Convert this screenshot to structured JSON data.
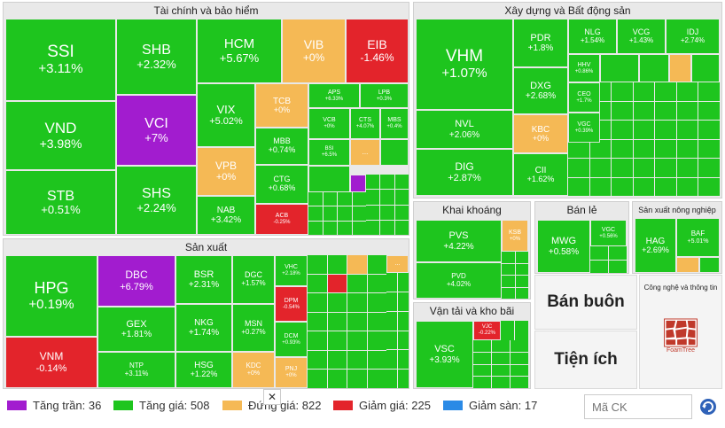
{
  "sectors": {
    "finance": "Tài chính và bảo hiểm",
    "construction": "Xây dựng và Bất động sản",
    "manufacturing": "Sản xuất",
    "mining": "Khai khoáng",
    "retail": "Bán lẻ",
    "agri": "Sản xuất nông nghiệp",
    "transport": "Vận tải và kho bãi",
    "tech": "Công nghệ và thông tin",
    "wholesale": "Bán buôn",
    "utilities": "Tiện ích"
  },
  "tiles": {
    "ssi": {
      "sym": "SSI",
      "chg": "+3.11%"
    },
    "vnd": {
      "sym": "VND",
      "chg": "+3.98%"
    },
    "stb": {
      "sym": "STB",
      "chg": "+0.51%"
    },
    "shb": {
      "sym": "SHB",
      "chg": "+2.32%"
    },
    "vci": {
      "sym": "VCI",
      "chg": "+7%"
    },
    "shs": {
      "sym": "SHS",
      "chg": "+2.24%"
    },
    "hcm": {
      "sym": "HCM",
      "chg": "+5.67%"
    },
    "vib": {
      "sym": "VIB",
      "chg": "+0%"
    },
    "eib": {
      "sym": "EIB",
      "chg": "-1.46%"
    },
    "vix": {
      "sym": "VIX",
      "chg": "+5.02%"
    },
    "tcb": {
      "sym": "TCB",
      "chg": "+0%"
    },
    "aps": {
      "sym": "APS",
      "chg": "+6.33%"
    },
    "lpb": {
      "sym": "LPB",
      "chg": "+0.3%"
    },
    "vcb": {
      "sym": "VCB",
      "chg": "+0%"
    },
    "cts": {
      "sym": "CTS",
      "chg": "+4.07%"
    },
    "mbs": {
      "sym": "MBS",
      "chg": "+0.4%"
    },
    "vpb": {
      "sym": "VPB",
      "chg": "+0%"
    },
    "mbb": {
      "sym": "MBB",
      "chg": "+0.74%"
    },
    "bsi": {
      "sym": "BSI",
      "chg": "+6.5%"
    },
    "ctg": {
      "sym": "CTG",
      "chg": "+0.68%"
    },
    "nab": {
      "sym": "NAB",
      "chg": "+3.42%"
    },
    "acb": {
      "sym": "ACB",
      "chg": "-0.25%"
    },
    "vhm": {
      "sym": "VHM",
      "chg": "+1.07%"
    },
    "pdr": {
      "sym": "PDR",
      "chg": "+1.8%"
    },
    "nlg": {
      "sym": "NLG",
      "chg": "+1.54%"
    },
    "vcg": {
      "sym": "VCG",
      "chg": "+1.43%"
    },
    "idj": {
      "sym": "IDJ",
      "chg": "+2.74%"
    },
    "dxg": {
      "sym": "DXG",
      "chg": "+2.68%"
    },
    "hhv": {
      "sym": "HHV",
      "chg": "+0.86%"
    },
    "ceo": {
      "sym": "CEO",
      "chg": "+1.7%"
    },
    "nvl": {
      "sym": "NVL",
      "chg": "+2.06%"
    },
    "kbc": {
      "sym": "KBC",
      "chg": "+0%"
    },
    "vgc": {
      "sym": "VGC",
      "chg": "+0.39%"
    },
    "dig": {
      "sym": "DIG",
      "chg": "+2.87%"
    },
    "cii": {
      "sym": "CII",
      "chg": "+1.62%"
    },
    "hpg": {
      "sym": "HPG",
      "chg": "+0.19%"
    },
    "vnm": {
      "sym": "VNM",
      "chg": "-0.14%"
    },
    "dbc": {
      "sym": "DBC",
      "chg": "+6.79%"
    },
    "gex": {
      "sym": "GEX",
      "chg": "+1.81%"
    },
    "ntp": {
      "sym": "NTP",
      "chg": "+3.11%"
    },
    "bsr": {
      "sym": "BSR",
      "chg": "+2.31%"
    },
    "dgc": {
      "sym": "DGC",
      "chg": "+1.57%"
    },
    "vhc": {
      "sym": "VHC",
      "chg": "+2.18%"
    },
    "nkg": {
      "sym": "NKG",
      "chg": "+1.74%"
    },
    "msn": {
      "sym": "MSN",
      "chg": "+0.27%"
    },
    "dpm": {
      "sym": "DPM",
      "chg": "-0.54%"
    },
    "dcm": {
      "sym": "DCM",
      "chg": "+0.93%"
    },
    "hsg": {
      "sym": "HSG",
      "chg": "+1.22%"
    },
    "kdc": {
      "sym": "KDC",
      "chg": "+0%"
    },
    "pnj": {
      "sym": "PNJ",
      "chg": "+0%"
    },
    "pvs": {
      "sym": "PVS",
      "chg": "+4.22%"
    },
    "pvd": {
      "sym": "PVD",
      "chg": "+4.02%"
    },
    "ksb": {
      "sym": "KSB",
      "chg": "+0%"
    },
    "mwg": {
      "sym": "MWG",
      "chg": "+0.58%"
    },
    "vgcr": {
      "sym": "VGC",
      "chg": "+0.56%"
    },
    "hag": {
      "sym": "HAG",
      "chg": "+2.69%"
    },
    "baf": {
      "sym": "BAF",
      "chg": "+5.01%"
    },
    "vsc": {
      "sym": "VSC",
      "chg": "+3.93%"
    },
    "vjc": {
      "sym": "VJC",
      "chg": "-0.22%"
    }
  },
  "ellipsis": "...",
  "legend": {
    "ceil": "Tăng trần: 36",
    "up": "Tăng giá: 508",
    "same": "Đứng giá: 822",
    "down": "Giảm giá: 225",
    "floor": "Giảm sàn: 17"
  },
  "colors": {
    "ceil": "#a21ccf",
    "up": "#1ec51e",
    "same": "#f5b955",
    "down": "#e3242b",
    "floor": "#2a8ae6"
  },
  "search": {
    "placeholder": "Mã CK"
  },
  "foamtree": "FoamTree",
  "close_glyph": "✕"
}
